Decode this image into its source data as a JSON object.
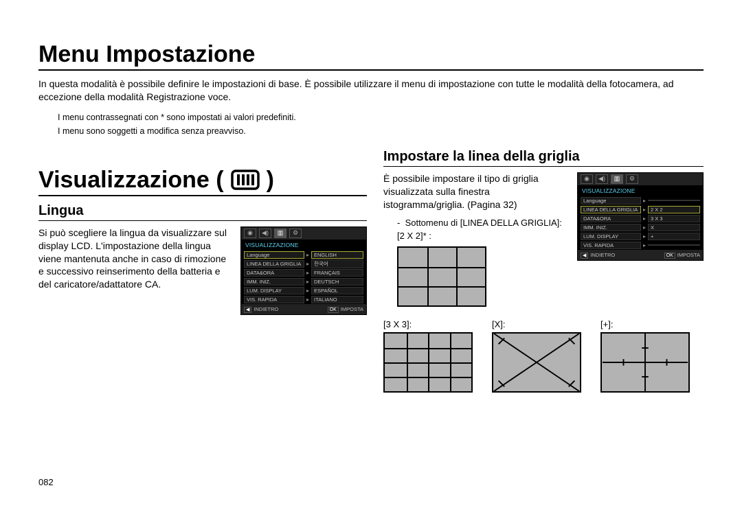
{
  "page_number": "082",
  "h1_menu": "Menu Impostazione",
  "intro_p": "In questa modalità è possibile definire le impostazioni di base. È possibile utilizzare il menu di impostazione con tutte le modalità della fotocamera, ad eccezione della modalità Registrazione voce.",
  "note1": "I menu contrassegnati con * sono impostati ai valori predefiniti.",
  "note2": "I menu sono soggetti a modifica senza preavviso.",
  "h1_vis": "Visualizzazione (",
  "h1_vis_close": ")",
  "lingua": {
    "title": "Lingua",
    "p": "Si può scegliere la lingua da visualizzare sul display LCD. L'impostazione della lingua viene mantenuta anche in caso di rimozione e successivo reinserimento della batteria e del caricatore/adattatore CA."
  },
  "griglia": {
    "title": "Impostare la linea della griglia",
    "p": "È possibile impostare il tipo di griglia visualizzata sulla finestra istogramma/griglia. (Pagina 32)",
    "sub": "Sottomenu di [LINEA DELLA GRIGLIA]:",
    "l_2x2": "[2 X 2]* :",
    "l_3x3": "[3 X 3]:",
    "l_x": "[X]:",
    "l_plus": "[+]:"
  },
  "lcd_lang": {
    "title": "VISUALIZZAZIONE",
    "rows": [
      {
        "k": "Language",
        "v": "ENGLISH",
        "sel": true
      },
      {
        "k": "LINEA DELLA GRIGLIA",
        "v": "한국어"
      },
      {
        "k": "DATA&ORA",
        "v": "FRANÇAIS"
      },
      {
        "k": "IMM. INIZ.",
        "v": "DEUTSCH"
      },
      {
        "k": "LUM. DISPLAY",
        "v": "ESPAÑOL"
      },
      {
        "k": "VIS. RAPIDA",
        "v": "ITALIANO"
      }
    ],
    "back": "INDIETRO",
    "ok": "IMPOSTA"
  },
  "lcd_grid": {
    "title": "VISUALIZZAZIONE",
    "rows": [
      {
        "k": "Language",
        "v": ""
      },
      {
        "k": "LINEA DELLA GRIGLIA",
        "v": "2 X 2",
        "sel": true
      },
      {
        "k": "DATA&ORA",
        "v": "3 X 3"
      },
      {
        "k": "IMM. INIZ.",
        "v": "X"
      },
      {
        "k": "LUM. DISPLAY",
        "v": "+"
      },
      {
        "k": "VIS. RAPIDA",
        "v": ""
      }
    ],
    "back": "INDIETRO",
    "ok": "IMPOSTA"
  },
  "colors": {
    "grid_fill": "#b3b3b3",
    "line": "#000000",
    "lcd_bg": "#000000",
    "lcd_title": "#5ad1f0"
  }
}
